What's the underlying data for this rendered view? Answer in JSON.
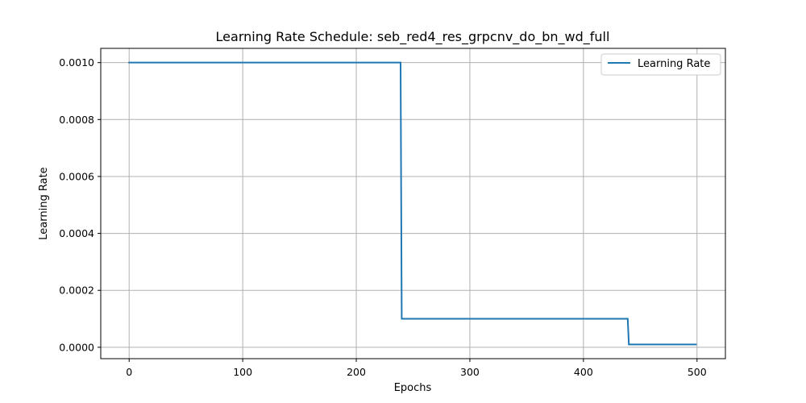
{
  "chart_data": {
    "type": "line",
    "title": "Learning Rate Schedule: seb_red4_res_grpcnv_do_bn_wd_full",
    "xlabel": "Epochs",
    "ylabel": "Learning Rate",
    "xlim": [
      -25,
      525
    ],
    "ylim": [
      -4e-05,
      0.00105
    ],
    "xticks": [
      0,
      100,
      200,
      300,
      400,
      500
    ],
    "xtick_labels": [
      "0",
      "100",
      "200",
      "300",
      "400",
      "500"
    ],
    "yticks": [
      0.0,
      0.0002,
      0.0004,
      0.0006,
      0.0008,
      0.001
    ],
    "ytick_labels": [
      "0.0000",
      "0.0002",
      "0.0004",
      "0.0006",
      "0.0008",
      "0.0010"
    ],
    "grid": true,
    "legend_position": "top-right",
    "series": [
      {
        "name": "Learning Rate",
        "color": "#1f77b4",
        "x": [
          0,
          239,
          240,
          439,
          440,
          499
        ],
        "y": [
          0.001,
          0.001,
          0.0001,
          0.0001,
          1e-05,
          1e-05
        ]
      }
    ]
  }
}
